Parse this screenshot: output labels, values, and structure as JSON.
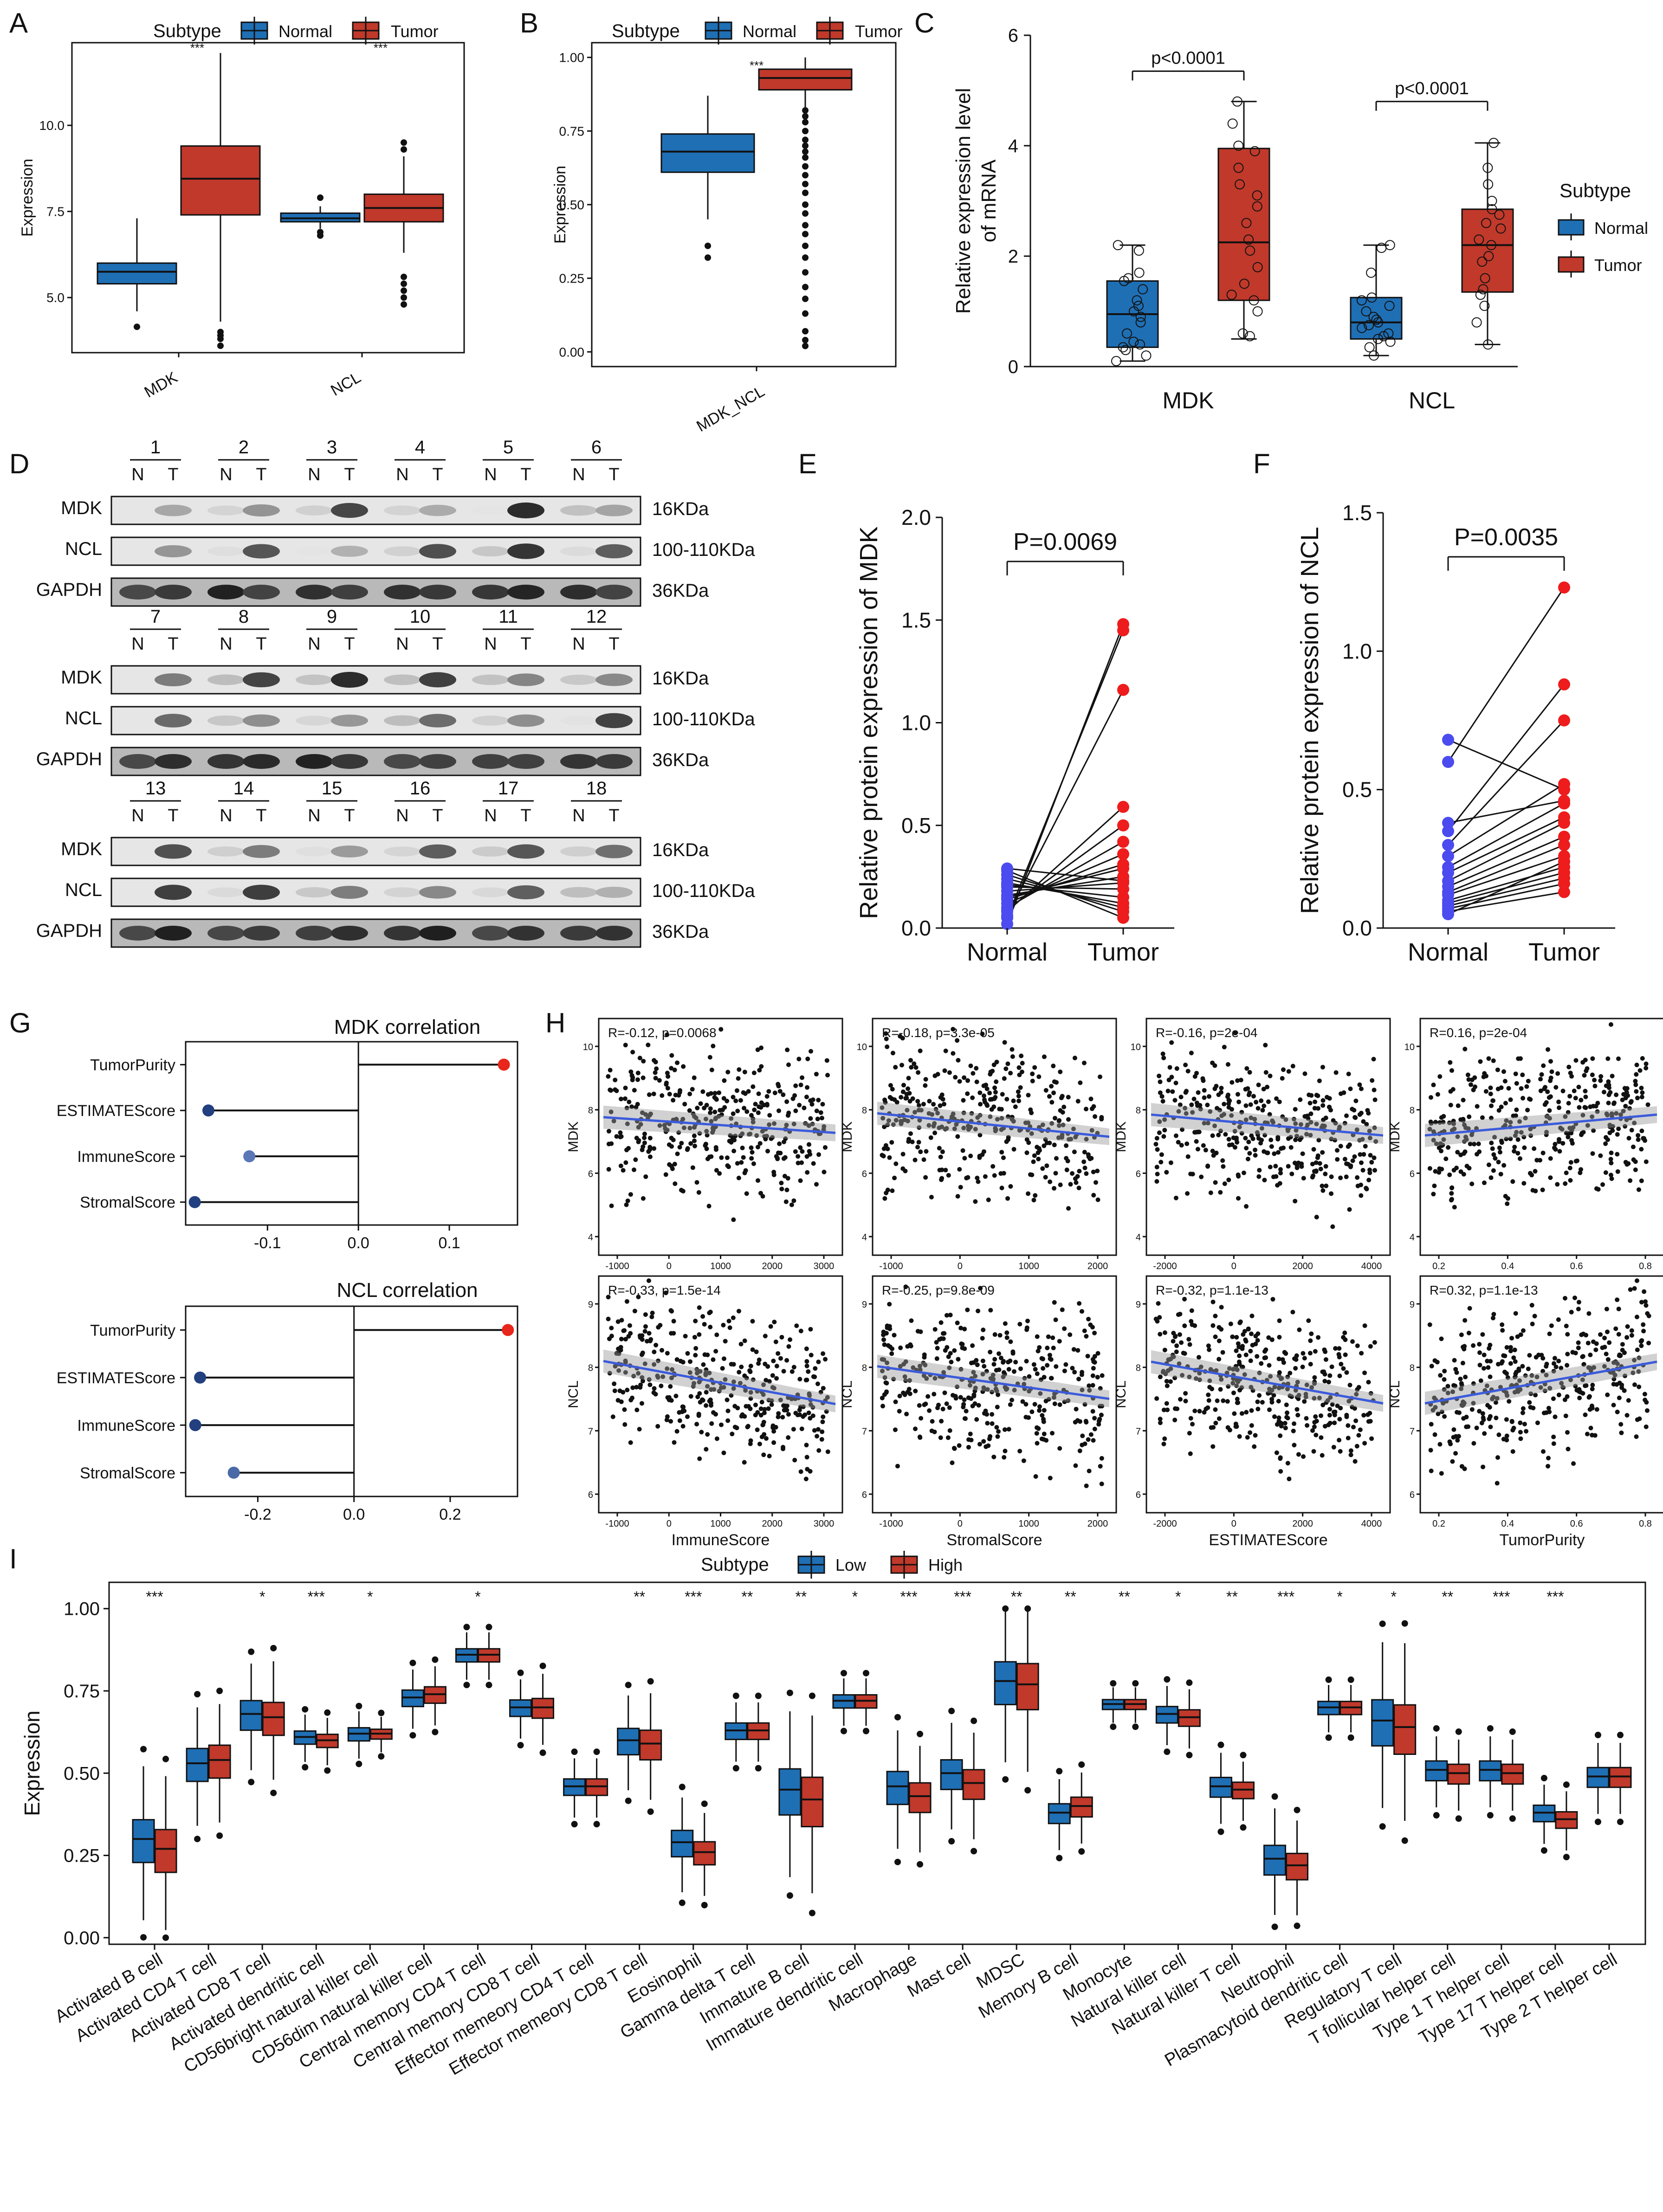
{
  "colors": {
    "normal": "#1f6fb5",
    "tumor": "#c0392b",
    "low": "#1f6fb5",
    "high": "#c0392b",
    "pointNormal": "#4b4bf0",
    "pointTumor": "#ee1c1c",
    "lineBlue": "#3b5bdb"
  },
  "chart_data": [
    {
      "id": "A",
      "type": "box",
      "panel": "A",
      "legend_title": "Subtype",
      "legend": [
        "Normal",
        "Tumor"
      ],
      "ylabel": "Expression",
      "ylim": [
        3.4,
        12.4
      ],
      "yticks": [
        5.0,
        7.5,
        10.0
      ],
      "categories": [
        "MDK",
        "NCL"
      ],
      "significance": [
        "***",
        "***"
      ],
      "series": [
        {
          "name": "Normal",
          "boxes": [
            {
              "min": 4.6,
              "q1": 5.4,
              "median": 5.75,
              "q3": 6.0,
              "max": 7.3,
              "outliers": [
                4.15
              ]
            },
            {
              "min": 7.0,
              "q1": 7.2,
              "median": 7.3,
              "q3": 7.45,
              "max": 7.65,
              "outliers": [
                7.9,
                6.9,
                6.8
              ]
            }
          ]
        },
        {
          "name": "Tumor",
          "boxes": [
            {
              "min": 4.3,
              "q1": 7.4,
              "median": 8.45,
              "q3": 9.4,
              "max": 12.1,
              "outliers": [
                4.0,
                3.9,
                3.8,
                3.6
              ]
            },
            {
              "min": 6.3,
              "q1": 7.2,
              "median": 7.6,
              "q3": 8.0,
              "max": 9.1,
              "outliers": [
                9.5,
                9.3,
                5.6,
                5.4,
                5.2,
                5.0,
                4.8
              ]
            }
          ]
        }
      ]
    },
    {
      "id": "B",
      "type": "box",
      "panel": "B",
      "legend_title": "Subtype",
      "legend": [
        "Normal",
        "Tumor"
      ],
      "ylabel": "Expression",
      "ylim": [
        -0.05,
        1.05
      ],
      "yticks": [
        0.0,
        0.25,
        0.5,
        0.75,
        1.0
      ],
      "ytick_labels": [
        "0.00",
        "0.25",
        "0.50",
        "0.75",
        "1.00"
      ],
      "categories": [
        "MDK_NCL"
      ],
      "significance": [
        "***"
      ],
      "series": [
        {
          "name": "Normal",
          "boxes": [
            {
              "min": 0.45,
              "q1": 0.61,
              "median": 0.68,
              "q3": 0.74,
              "max": 0.87,
              "outliers": [
                0.36,
                0.32
              ]
            }
          ]
        },
        {
          "name": "Tumor",
          "boxes": [
            {
              "min": 0.83,
              "q1": 0.89,
              "median": 0.93,
              "q3": 0.96,
              "max": 1.0,
              "outliers": [
                0.82,
                0.8,
                0.78,
                0.75,
                0.72,
                0.7,
                0.68,
                0.66,
                0.63,
                0.6,
                0.57,
                0.54,
                0.5,
                0.47,
                0.43,
                0.4,
                0.36,
                0.32,
                0.27,
                0.22,
                0.18,
                0.13,
                0.07,
                0.04,
                0.02
              ]
            }
          ]
        }
      ]
    },
    {
      "id": "C",
      "type": "box_with_points",
      "panel": "C",
      "legend_title": "Subtype",
      "legend": [
        "Normal",
        "Tumor"
      ],
      "ylabel": "Relative expression level of mRNA",
      "ylabel_lines": [
        "Relative expression level",
        "of mRNA"
      ],
      "ylim": [
        0,
        6
      ],
      "yticks": [
        0,
        2,
        4,
        6
      ],
      "categories": [
        "MDK",
        "NCL"
      ],
      "pvalues": [
        "p<0.0001",
        "p<0.0001"
      ],
      "series": [
        {
          "name": "Normal",
          "boxes": [
            {
              "min": 0.1,
              "q1": 0.35,
              "median": 0.95,
              "q3": 1.55,
              "max": 2.2,
              "points": [
                0.1,
                0.2,
                0.3,
                0.35,
                0.4,
                0.45,
                0.6,
                0.8,
                0.9,
                1.0,
                1.1,
                1.2,
                1.4,
                1.55,
                1.6,
                1.7,
                2.1,
                2.2
              ]
            },
            {
              "min": 0.2,
              "q1": 0.5,
              "median": 0.8,
              "q3": 1.25,
              "max": 2.2,
              "points": [
                0.2,
                0.35,
                0.45,
                0.5,
                0.55,
                0.6,
                0.7,
                0.75,
                0.8,
                0.85,
                0.9,
                1.0,
                1.1,
                1.2,
                1.25,
                1.7,
                2.15,
                2.2
              ]
            }
          ]
        },
        {
          "name": "Tumor",
          "boxes": [
            {
              "min": 0.5,
              "q1": 1.2,
              "median": 2.25,
              "q3": 3.95,
              "max": 4.8,
              "points": [
                0.55,
                0.6,
                1.0,
                1.2,
                1.3,
                1.5,
                1.8,
                2.1,
                2.3,
                2.6,
                2.9,
                3.1,
                3.3,
                3.6,
                3.9,
                4.0,
                4.4,
                4.8
              ]
            },
            {
              "min": 0.4,
              "q1": 1.35,
              "median": 2.2,
              "q3": 2.85,
              "max": 4.05,
              "points": [
                0.4,
                0.8,
                1.1,
                1.3,
                1.4,
                1.6,
                1.9,
                2.0,
                2.2,
                2.3,
                2.5,
                2.6,
                2.75,
                2.85,
                3.0,
                3.3,
                3.6,
                4.05
              ]
            }
          ]
        }
      ]
    },
    {
      "id": "E",
      "type": "paired_dot",
      "panel": "E",
      "ylabel": "Relative protein expression of MDK",
      "ylim": [
        0,
        2.0
      ],
      "yticks": [
        0.0,
        0.5,
        1.0,
        1.5,
        2.0
      ],
      "ytick_labels": [
        "0.0",
        "0.5",
        "1.0",
        "1.5",
        "2.0"
      ],
      "categories": [
        "Normal",
        "Tumor"
      ],
      "pvalue": "P=0.0069",
      "normal": [
        0.02,
        0.05,
        0.06,
        0.08,
        0.09,
        0.1,
        0.12,
        0.14,
        0.15,
        0.16,
        0.18,
        0.2,
        0.21,
        0.22,
        0.24,
        0.26,
        0.28,
        0.29
      ],
      "tumor": [
        1.48,
        1.45,
        1.16,
        0.59,
        0.5,
        0.42,
        0.36,
        0.31,
        0.29,
        0.25,
        0.22,
        0.19,
        0.15,
        0.12,
        0.1,
        0.08,
        0.05,
        0.23
      ]
    },
    {
      "id": "F",
      "type": "paired_dot",
      "panel": "F",
      "ylabel": "Relative protein expression of NCL",
      "ylim": [
        0,
        1.5
      ],
      "yticks": [
        0.0,
        0.5,
        1.0,
        1.5
      ],
      "ytick_labels": [
        "0.0",
        "0.5",
        "1.0",
        "1.5"
      ],
      "categories": [
        "Normal",
        "Tumor"
      ],
      "pvalue": "P=0.0035",
      "normal": [
        0.68,
        0.6,
        0.38,
        0.35,
        0.3,
        0.26,
        0.22,
        0.2,
        0.17,
        0.15,
        0.13,
        0.12,
        0.1,
        0.09,
        0.08,
        0.07,
        0.06,
        0.05
      ],
      "tumor": [
        0.5,
        1.23,
        0.46,
        0.88,
        0.75,
        0.52,
        0.45,
        0.4,
        0.38,
        0.33,
        0.3,
        0.26,
        0.22,
        0.2,
        0.18,
        0.16,
        0.13,
        0.24
      ]
    },
    {
      "id": "G1",
      "type": "lollipop",
      "panel": "G",
      "title": "MDK correlation",
      "categories": [
        "TumorPurity",
        "ESTIMATEScore",
        "ImmuneScore",
        "StromalScore"
      ],
      "values": [
        0.16,
        -0.165,
        -0.12,
        -0.18
      ],
      "xlim": [
        -0.19,
        0.175
      ],
      "xticks": [
        -0.1,
        0.0,
        0.1
      ],
      "xtick_labels": [
        "-0.1",
        "0.0",
        "0.1"
      ]
    },
    {
      "id": "G2",
      "type": "lollipop",
      "panel": "G",
      "title": "NCL correlation",
      "categories": [
        "TumorPurity",
        "ESTIMATEScore",
        "ImmuneScore",
        "StromalScore"
      ],
      "values": [
        0.32,
        -0.32,
        -0.33,
        -0.25
      ],
      "xlim": [
        -0.35,
        0.34
      ],
      "xticks": [
        -0.2,
        0.0,
        0.2
      ],
      "xtick_labels": [
        "-0.2",
        "0.0",
        "0.2"
      ]
    },
    {
      "id": "H",
      "type": "scatter_grid",
      "panel": "H",
      "plots": [
        {
          "y": "MDK",
          "x": "ImmuneScore",
          "stat": "R=-0.12, p=0.0068",
          "xticks": [
            "-1000",
            "0",
            "1000",
            "2000",
            "3000"
          ],
          "yticks": [
            "4",
            "6",
            "8",
            "10"
          ],
          "slope": -0.12
        },
        {
          "y": "MDK",
          "x": "StromalScore",
          "stat": "R=-0.18, p=3.3e-05",
          "xticks": [
            "-1000",
            "0",
            "1000",
            "2000"
          ],
          "yticks": [
            "4",
            "6",
            "8",
            "10"
          ],
          "slope": -0.18
        },
        {
          "y": "MDK",
          "x": "ESTIMATEScore",
          "stat": "R=-0.16, p=2e-04",
          "xticks": [
            "-2000",
            "0",
            "2000",
            "4000"
          ],
          "yticks": [
            "4",
            "6",
            "8",
            "10"
          ],
          "slope": -0.16
        },
        {
          "y": "MDK",
          "x": "TumorPurity",
          "stat": "R=0.16, p=2e-04",
          "xticks": [
            "0.2",
            "0.4",
            "0.6",
            "0.8"
          ],
          "yticks": [
            "4",
            "6",
            "8",
            "10"
          ],
          "slope": 0.16
        },
        {
          "y": "NCL",
          "x": "ImmuneScore",
          "stat": "R=-0.33, p=1.5e-14",
          "xticks": [
            "-1000",
            "0",
            "1000",
            "2000",
            "3000"
          ],
          "yticks": [
            "6",
            "7",
            "8",
            "9"
          ],
          "slope": -0.33
        },
        {
          "y": "NCL",
          "x": "StromalScore",
          "stat": "R=-0.25, p=9.8e-09",
          "xticks": [
            "-1000",
            "0",
            "1000",
            "2000"
          ],
          "yticks": [
            "6",
            "7",
            "8",
            "9"
          ],
          "slope": -0.25
        },
        {
          "y": "NCL",
          "x": "ESTIMATEScore",
          "stat": "R=-0.32, p=1.1e-13",
          "xticks": [
            "-2000",
            "0",
            "2000",
            "4000"
          ],
          "yticks": [
            "6",
            "7",
            "8",
            "9"
          ],
          "slope": -0.32
        },
        {
          "y": "NCL",
          "x": "TumorPurity",
          "stat": "R=0.32, p=1.1e-13",
          "xticks": [
            "0.2",
            "0.4",
            "0.6",
            "0.8"
          ],
          "yticks": [
            "6",
            "7",
            "8",
            "9"
          ],
          "slope": 0.32
        }
      ]
    },
    {
      "id": "I",
      "type": "box",
      "panel": "I",
      "legend_title": "Subtype",
      "legend": [
        "Low",
        "High"
      ],
      "ylabel": "Expression",
      "ylim": [
        -0.02,
        1.08
      ],
      "yticks": [
        0.0,
        0.25,
        0.5,
        0.75,
        1.0
      ],
      "ytick_labels": [
        "0.00",
        "0.25",
        "0.50",
        "0.75",
        "1.00"
      ],
      "categories": [
        "Activated B cell",
        "Activated CD4 T cell",
        "Activated CD8 T cell",
        "Activated dendritic cell",
        "CD56bright natural killer cell",
        "CD56dim natural killer cell",
        "Central memory CD4 T cell",
        "Central memory CD8 T cell",
        "Effector memeory CD4 T cell",
        "Effector memeory CD8 T cell",
        "Eosinophil",
        "Gamma delta T cell",
        "Immature  B cell",
        "Immature dendritic cell",
        "Macrophage",
        "Mast cell",
        "MDSC",
        "Memory B cell",
        "Monocyte",
        "Natural killer cell",
        "Natural killer T cell",
        "Neutrophil",
        "Plasmacytoid dendritic cell",
        "Regulatory T cell",
        "T follicular helper cell",
        "Type 1 T helper cell",
        "Type 17 T helper cell",
        "Type 2 T helper cell"
      ],
      "significance": [
        "***",
        "",
        "*",
        "***",
        "*",
        "",
        "*",
        "",
        "",
        "**",
        "***",
        "**",
        "**",
        "*",
        "***",
        "***",
        "**",
        "**",
        "**",
        "*",
        "**",
        "***",
        "*",
        "*",
        "**",
        "***",
        "***",
        ""
      ],
      "low_median": [
        0.3,
        0.53,
        0.68,
        0.61,
        0.62,
        0.73,
        0.86,
        0.7,
        0.46,
        0.6,
        0.29,
        0.63,
        0.45,
        0.72,
        0.46,
        0.5,
        0.78,
        0.38,
        0.71,
        0.68,
        0.46,
        0.24,
        0.7,
        0.66,
        0.51,
        0.51,
        0.38,
        0.49
      ],
      "high_median": [
        0.27,
        0.54,
        0.67,
        0.6,
        0.62,
        0.74,
        0.86,
        0.7,
        0.46,
        0.59,
        0.26,
        0.63,
        0.42,
        0.72,
        0.43,
        0.47,
        0.77,
        0.4,
        0.71,
        0.67,
        0.45,
        0.22,
        0.7,
        0.64,
        0.5,
        0.5,
        0.36,
        0.49
      ],
      "low_iqr": [
        0.13,
        0.1,
        0.09,
        0.04,
        0.04,
        0.05,
        0.04,
        0.05,
        0.05,
        0.08,
        0.08,
        0.05,
        0.14,
        0.04,
        0.1,
        0.09,
        0.13,
        0.06,
        0.03,
        0.05,
        0.06,
        0.09,
        0.04,
        0.14,
        0.06,
        0.06,
        0.05,
        0.06
      ],
      "high_iqr": [
        0.13,
        0.1,
        0.1,
        0.04,
        0.03,
        0.05,
        0.04,
        0.06,
        0.05,
        0.09,
        0.07,
        0.05,
        0.15,
        0.04,
        0.09,
        0.09,
        0.14,
        0.06,
        0.03,
        0.05,
        0.05,
        0.08,
        0.04,
        0.15,
        0.06,
        0.06,
        0.05,
        0.06
      ]
    }
  ],
  "panel_labels": [
    "A",
    "B",
    "C",
    "D",
    "E",
    "F",
    "G",
    "H",
    "I"
  ],
  "western_blot": {
    "groups": [
      {
        "lanes": [
          "1",
          "2",
          "3",
          "4",
          "5",
          "6"
        ],
        "rows": [
          {
            "protein": "MDK",
            "size": "16KDa"
          },
          {
            "protein": "NCL",
            "size": "100-110KDa"
          },
          {
            "protein": "GAPDH",
            "size": "36KDa"
          }
        ]
      },
      {
        "lanes": [
          "7",
          "8",
          "9",
          "10",
          "11",
          "12"
        ],
        "rows": [
          {
            "protein": "MDK",
            "size": "16KDa"
          },
          {
            "protein": "NCL",
            "size": "100-110KDa"
          },
          {
            "protein": "GAPDH",
            "size": "36KDa"
          }
        ]
      },
      {
        "lanes": [
          "13",
          "14",
          "15",
          "16",
          "17",
          "18"
        ],
        "rows": [
          {
            "protein": "MDK",
            "size": "16KDa"
          },
          {
            "protein": "NCL",
            "size": "100-110KDa"
          },
          {
            "protein": "GAPDH",
            "size": "36KDa"
          }
        ]
      }
    ],
    "lane_sub": [
      "N",
      "T"
    ]
  }
}
